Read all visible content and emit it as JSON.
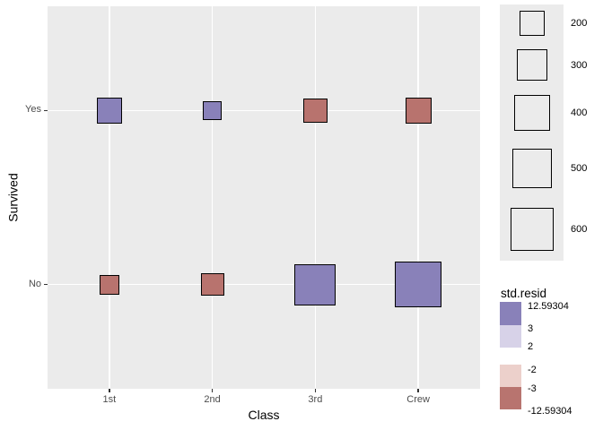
{
  "chart_data": {
    "type": "scatter",
    "subtype": "sized-square-categorical-plot",
    "title": "",
    "xlabel": "Class",
    "ylabel": "Survived",
    "x_categories": [
      "1st",
      "2nd",
      "3rd",
      "Crew"
    ],
    "y_categories": [
      "Yes",
      "No"
    ],
    "points": [
      {
        "x": "1st",
        "y": "Yes",
        "freq": 203,
        "resid_sign": "positive",
        "fill": "#8981B9"
      },
      {
        "x": "2nd",
        "y": "Yes",
        "freq": 118,
        "resid_sign": "positive",
        "fill": "#8981B9"
      },
      {
        "x": "3rd",
        "y": "Yes",
        "freq": 178,
        "resid_sign": "negative",
        "fill": "#B8736E"
      },
      {
        "x": "Crew",
        "y": "Yes",
        "freq": 212,
        "resid_sign": "negative",
        "fill": "#B8736E"
      },
      {
        "x": "1st",
        "y": "No",
        "freq": 122,
        "resid_sign": "negative",
        "fill": "#B8736E"
      },
      {
        "x": "2nd",
        "y": "No",
        "freq": 167,
        "resid_sign": "negative",
        "fill": "#B8736E"
      },
      {
        "x": "3rd",
        "y": "No",
        "freq": 528,
        "resid_sign": "positive",
        "fill": "#8981B9"
      },
      {
        "x": "Crew",
        "y": "No",
        "freq": 673,
        "resid_sign": "positive",
        "fill": "#8981B9"
      }
    ],
    "size_encoding": {
      "area_proportional_to": "freq",
      "side_px_formula": "2*sqrt(freq)"
    },
    "size_legend": {
      "values": [
        200,
        300,
        400,
        500,
        600
      ]
    },
    "fill_legend": {
      "title": "std.resid",
      "labels": [
        "12.59304",
        "3",
        "2",
        "-2",
        "-3",
        "-12.59304"
      ],
      "swatches": [
        {
          "color": "#8981B9",
          "range": "3 to 12.59304"
        },
        {
          "color": "#D7D2E8",
          "range": "2 to 3"
        },
        {
          "color": "#ECD0CB",
          "range": "-3 to -2"
        },
        {
          "color": "#B8746F",
          "range": "-12.59304 to -3"
        }
      ]
    },
    "layout_hints": {
      "panel_bg": "#EBEBEB",
      "grid_color": "#FFFFFF",
      "grid": "major-only",
      "tick_text_color": "#4D4D4D",
      "axis_title_color": "#000000",
      "square_border_color": "#000000",
      "legend_position": "right"
    }
  }
}
